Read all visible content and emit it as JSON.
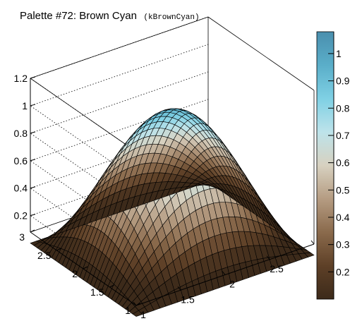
{
  "title": {
    "main": "Palette #72: Brown Cyan",
    "code": "(kBrownCyan)"
  },
  "chart_data": {
    "type": "surface",
    "function": "cos(pi*(x-2)/2) * cos(pi*(y-2)/2)",
    "x_range": [
      1,
      3
    ],
    "y_range": [
      1,
      3
    ],
    "z_range": [
      0.08,
      1.2
    ],
    "grid_cells": 30,
    "x_ticks": [
      "1",
      "1.5",
      "2",
      "2.5",
      "3"
    ],
    "y_ticks": [
      "1",
      "1.5",
      "2",
      "2.5",
      "3"
    ],
    "z_ticks": [
      "0.2",
      "0.4",
      "0.6",
      "0.8",
      "1",
      "1.2"
    ],
    "z_tick_values": [
      0.2,
      0.4,
      0.6,
      0.8,
      1.0,
      1.2
    ],
    "colorbar": {
      "range": [
        0.1,
        1.08
      ],
      "ticks": [
        "0.2",
        "0.3",
        "0.4",
        "0.5",
        "0.6",
        "0.7",
        "0.8",
        "0.9",
        "1"
      ],
      "tick_values": [
        0.2,
        0.3,
        0.4,
        0.5,
        0.6,
        0.7,
        0.8,
        0.9,
        1.0
      ],
      "palette": "kBrownCyan",
      "colors": [
        "#3c2a1a",
        "#5e4027",
        "#8a6a4c",
        "#b59c82",
        "#d7d1c0",
        "#bde3ea",
        "#7fd0e4",
        "#5aaec9",
        "#4a8fae"
      ]
    }
  }
}
